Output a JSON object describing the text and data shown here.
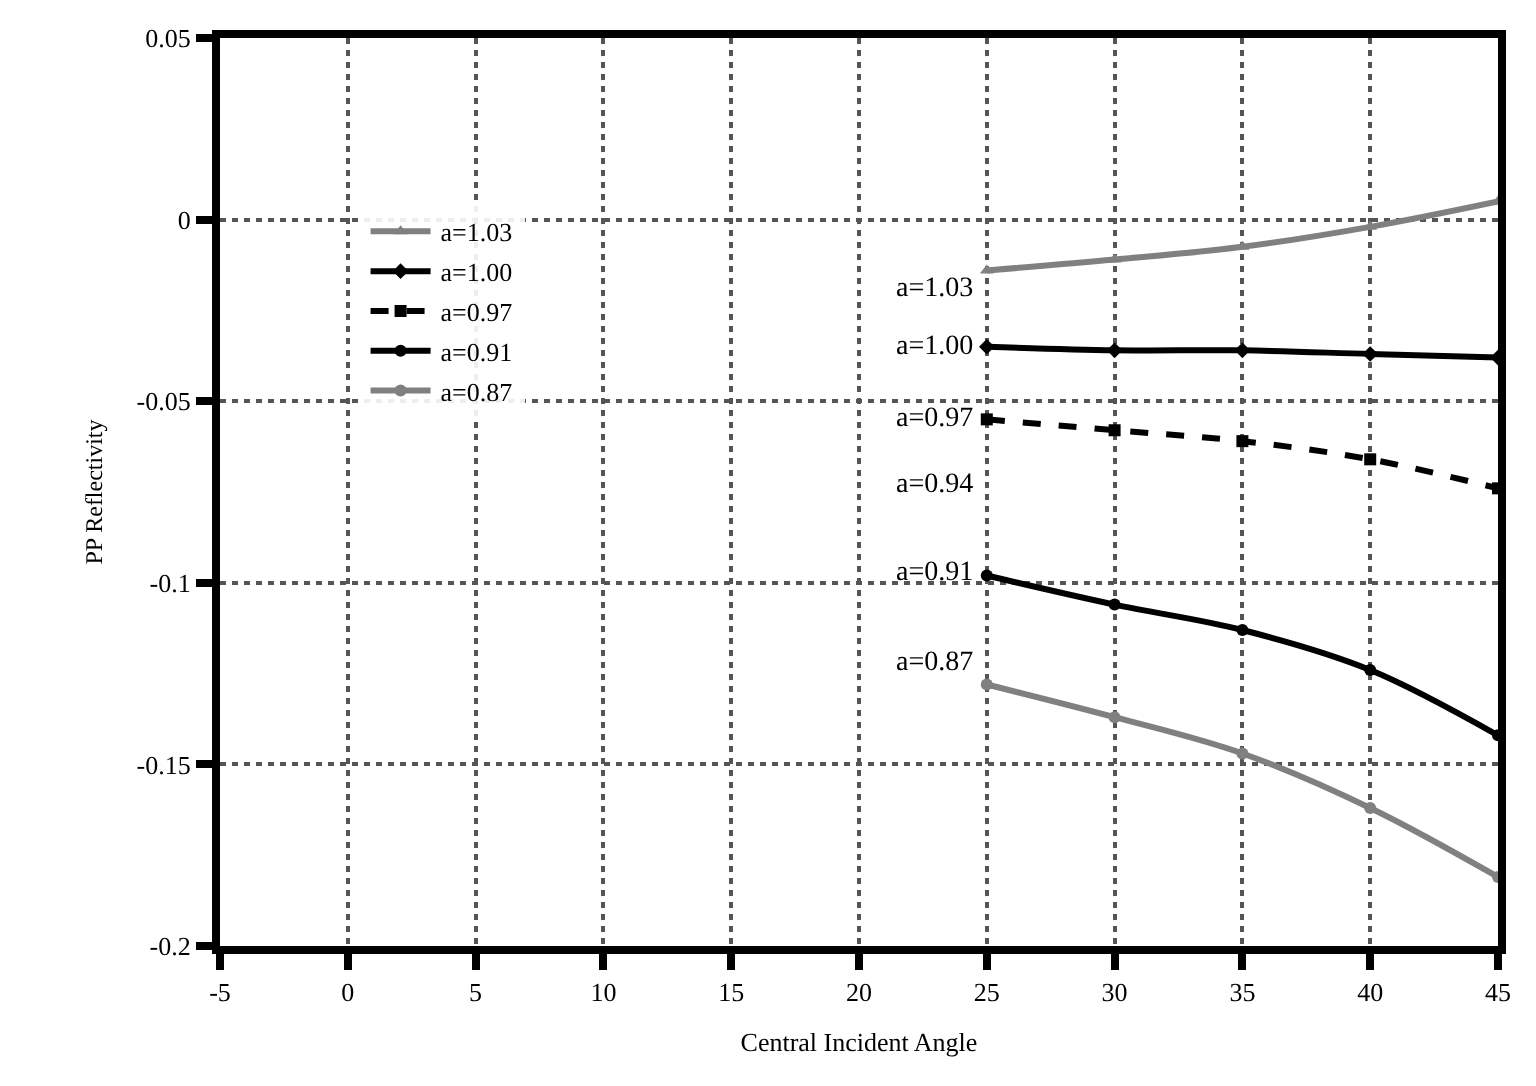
{
  "chart_data": {
    "type": "line",
    "xlabel": "Central Incident Angle",
    "ylabel": "PP Reflectivity",
    "x": [
      25,
      30,
      35,
      40,
      45
    ],
    "series": [
      {
        "name": "a=1.03",
        "color": "#808080",
        "values": [
          -0.014,
          -0.011,
          -0.0075,
          -0.002,
          0.005
        ],
        "line_style": "solid",
        "marker": "triangle"
      },
      {
        "name": "a=1.00",
        "color": "#000000",
        "values": [
          -0.035,
          -0.036,
          -0.036,
          -0.037,
          -0.038
        ],
        "line_style": "solid",
        "marker": "diamond"
      },
      {
        "name": "a=0.97",
        "color": "#000000",
        "values": [
          -0.055,
          -0.058,
          -0.061,
          -0.066,
          -0.074
        ],
        "line_style": "dashed",
        "marker": "square"
      },
      {
        "name": "a=0.91",
        "color": "#000000",
        "values": [
          -0.098,
          -0.106,
          -0.113,
          -0.124,
          -0.142
        ],
        "line_style": "solid",
        "marker": "circle"
      },
      {
        "name": "a=0.87",
        "color": "#808080",
        "values": [
          -0.128,
          -0.137,
          -0.147,
          -0.162,
          -0.181
        ],
        "line_style": "solid",
        "marker": "circle"
      }
    ],
    "annotations": [
      "a=1.03",
      "a=1.00",
      "a=0.97",
      "a=0.94",
      "a=0.91",
      "a=0.87"
    ],
    "xlim": [
      -5,
      45
    ],
    "xticks": [
      -5,
      0,
      5,
      10,
      15,
      20,
      25,
      30,
      35,
      40,
      45
    ],
    "ylim": [
      -0.2,
      0.05
    ],
    "yticks": [
      -0.2,
      -0.15,
      -0.1,
      -0.05,
      0,
      0.05
    ],
    "grid": true,
    "legend": "top left"
  }
}
